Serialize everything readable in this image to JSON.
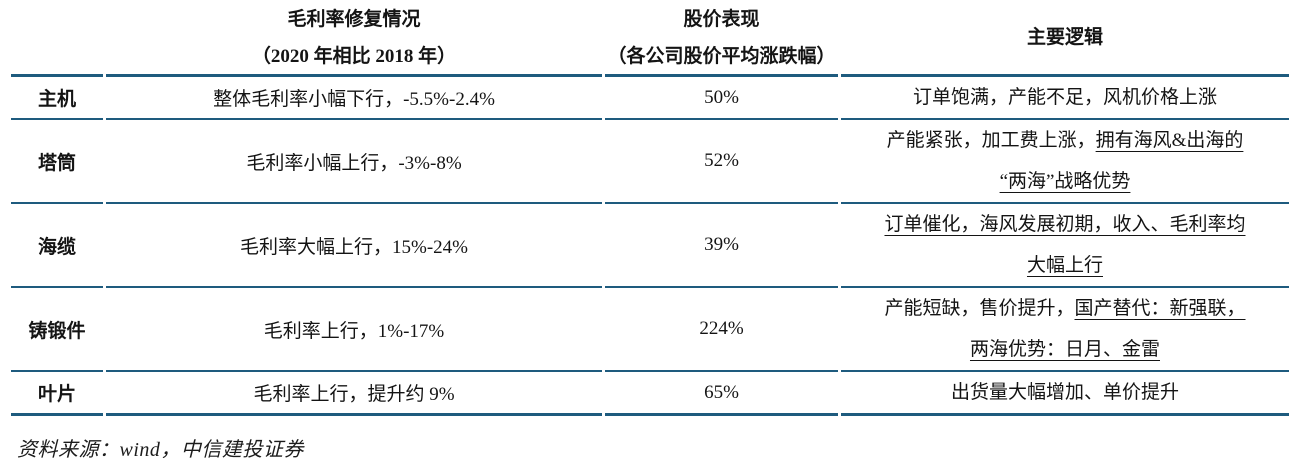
{
  "table": {
    "columns": [
      {
        "title": "",
        "subtitle": ""
      },
      {
        "title": "毛利率修复情况",
        "subtitle": "（2020 年相比 2018 年）"
      },
      {
        "title": "股价表现",
        "subtitle": "（各公司股价平均涨跌幅）"
      },
      {
        "title": "主要逻辑",
        "subtitle": ""
      }
    ],
    "rows": [
      {
        "category": "主机",
        "margin_change": "整体毛利率小幅下行，-5.5%-2.4%",
        "stock_performance": "50%",
        "logic_lines": [
          [
            {
              "text": "订单饱满，产能不足，风机价格上涨",
              "underline": false
            }
          ]
        ]
      },
      {
        "category": "塔筒",
        "margin_change": "毛利率小幅上行，-3%-8%",
        "stock_performance": "52%",
        "logic_lines": [
          [
            {
              "text": "产能紧张，加工费上涨，",
              "underline": false
            },
            {
              "text": "拥有海风&出海的",
              "underline": true
            }
          ],
          [
            {
              "text": "“两海”战略优势",
              "underline": true
            }
          ]
        ]
      },
      {
        "category": "海缆",
        "margin_change": "毛利率大幅上行，15%-24%",
        "stock_performance": "39%",
        "logic_lines": [
          [
            {
              "text": "订单催化，海风发展初期，收入、毛利率均",
              "underline": true
            }
          ],
          [
            {
              "text": "大幅上行",
              "underline": true
            }
          ]
        ]
      },
      {
        "category": "铸锻件",
        "margin_change": "毛利率上行，1%-17%",
        "stock_performance": "224%",
        "logic_lines": [
          [
            {
              "text": "产能短缺，售价提升，",
              "underline": false
            },
            {
              "text": "国产替代：新强联，",
              "underline": true
            }
          ],
          [
            {
              "text": "两海优势：日月、金雷",
              "underline": true
            }
          ]
        ]
      },
      {
        "category": "叶片",
        "margin_change": "毛利率上行，提升约 9%",
        "stock_performance": "65%",
        "logic_lines": [
          [
            {
              "text": "出货量大幅增加、单价提升",
              "underline": false
            }
          ]
        ]
      }
    ]
  },
  "footer": {
    "source": "资料来源：wind，中信建投证券"
  },
  "colors": {
    "rule_line": "#1e5b7e",
    "text": "#141414"
  }
}
